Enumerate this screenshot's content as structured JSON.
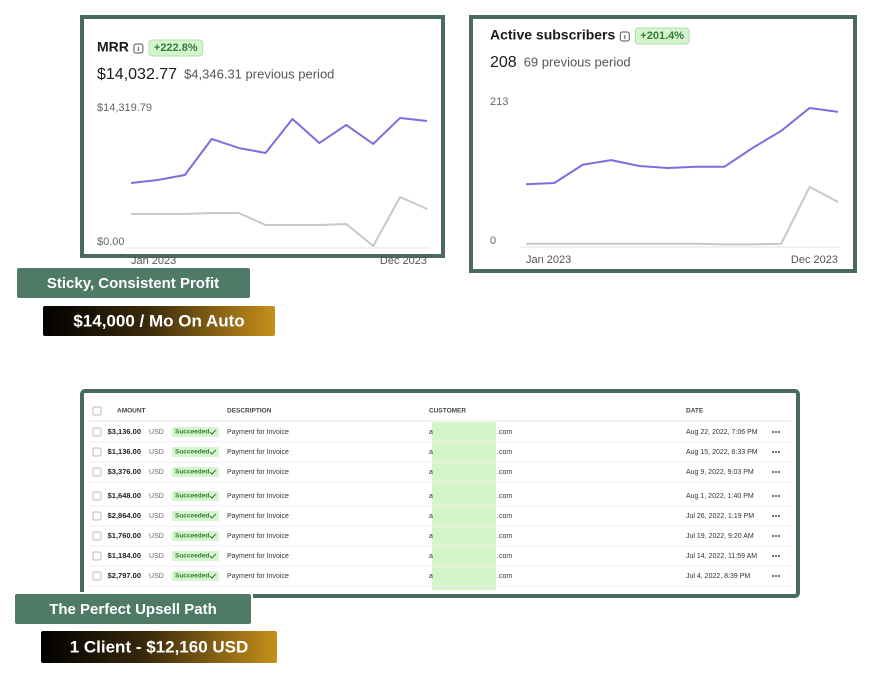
{
  "chart_data": [
    {
      "type": "line",
      "title": "MRR",
      "change": "+222.8%",
      "value": "$14,032.77",
      "previous": "$4,346.31 previous period",
      "categories": [
        "Jan 2023",
        null,
        null,
        null,
        null,
        null,
        null,
        null,
        null,
        null,
        null,
        "Dec 2023"
      ],
      "ylim": [
        0,
        14319.79
      ],
      "yticks": [
        {
          "value": 14319.79,
          "label": "$14,319.79"
        },
        {
          "value": 0,
          "label": "$0.00"
        }
      ],
      "series": [
        {
          "color": "#7b6fe0",
          "values": [
            6734,
            7055,
            7590,
            11438,
            10476,
            9942,
            13576,
            11011,
            12935,
            10904,
            13683,
            13362
          ]
        },
        {
          "color": "#c8c8c8",
          "values": [
            3421,
            3421,
            3421,
            3528,
            3528,
            2245,
            2245,
            2245,
            2352,
            0,
            5238,
            3955
          ]
        }
      ]
    },
    {
      "type": "line",
      "title": "Active subscribers",
      "change": "+201.4%",
      "value": "208",
      "previous": "69 previous period",
      "categories": [
        "Jan 2023",
        null,
        null,
        null,
        null,
        null,
        null,
        null,
        null,
        null,
        null,
        "Dec 2023"
      ],
      "ylim": [
        0,
        213
      ],
      "yticks": [
        213,
        0
      ],
      "series": [
        {
          "color": "#7b6fe0",
          "values": [
            93,
            95,
            123,
            130,
            121,
            118,
            120,
            120,
            149,
            175,
            210,
            204
          ]
        },
        {
          "color": "#c8c8c8",
          "values": [
            2,
            2,
            2,
            2,
            2,
            2,
            2,
            1,
            1,
            2,
            89,
            66
          ]
        }
      ]
    }
  ],
  "labels": {
    "profit": "Sticky, Consistent Profit",
    "monthly": "$14,000 / Mo On Auto",
    "upsell": "The Perfect Upsell Path",
    "client": "1 Client - $12,160 USD"
  },
  "table": {
    "headers": {
      "amount": "AMOUNT",
      "description": "DESCRIPTION",
      "customer": "CUSTOMER",
      "date": "DATE"
    },
    "rows": [
      {
        "amount": "$3,136.00",
        "currency": "USD",
        "status": "Succeeded",
        "description": "Payment for Invoice",
        "customer_start": "a",
        "customer_end": ".com",
        "date": "Aug 22, 2022, 7:06 PM"
      },
      {
        "amount": "$1,136.00",
        "currency": "USD",
        "status": "Succeeded",
        "description": "Payment for Invoice",
        "customer_start": "a",
        "customer_end": ".com",
        "date": "Aug 15, 2022, 8:33 PM"
      },
      {
        "amount": "$3,376.00",
        "currency": "USD",
        "status": "Succeeded",
        "description": "Payment for Invoice",
        "customer_start": "a",
        "customer_end": ".com",
        "date": "Aug 9, 2022, 9:03 PM"
      },
      {
        "amount": "$1,648.00",
        "currency": "USD",
        "status": "Succeeded",
        "description": "Payment for Invoice",
        "customer_start": "a",
        "customer_end": ".com",
        "date": "Aug 1, 2022, 1:40 PM"
      },
      {
        "amount": "$2,864.00",
        "currency": "USD",
        "status": "Succeeded",
        "description": "Payment for Invoice",
        "customer_start": "a",
        "customer_end": ".com",
        "date": "Jul 26, 2022, 1:19 PM"
      },
      {
        "amount": "$1,760.00",
        "currency": "USD",
        "status": "Succeeded",
        "description": "Payment for Invoice",
        "customer_start": "a",
        "customer_end": ".com",
        "date": "Jul 19, 2022, 9:20 AM"
      },
      {
        "amount": "$1,184.00",
        "currency": "USD",
        "status": "Succeeded",
        "description": "Payment for Invoice",
        "customer_start": "a",
        "customer_end": ".com",
        "date": "Jul 14, 2022, 11:59 AM"
      },
      {
        "amount": "$2,797.00",
        "currency": "USD",
        "status": "Succeeded",
        "description": "Payment for Invoice",
        "customer_start": "a",
        "customer_end": ".com",
        "date": "Jul 4, 2022, 8:39 PM"
      }
    ]
  }
}
